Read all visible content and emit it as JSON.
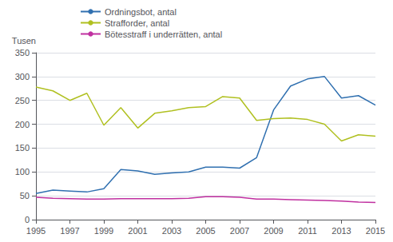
{
  "chart_data": {
    "type": "line",
    "ylabel": "Tusen",
    "x": [
      1995,
      1996,
      1997,
      1998,
      1999,
      2000,
      2001,
      2002,
      2003,
      2004,
      2005,
      2006,
      2007,
      2008,
      2009,
      2010,
      2011,
      2012,
      2013,
      2014,
      2015
    ],
    "series": [
      {
        "name": "Ordningsbot, antal",
        "color": "#3070b0",
        "values": [
          55,
          62,
          60,
          58,
          65,
          105,
          102,
          95,
          98,
          100,
          110,
          110,
          108,
          130,
          230,
          280,
          295,
          300,
          255,
          260,
          240
        ]
      },
      {
        "name": "Strafforder, antal",
        "color": "#b0c020",
        "values": [
          278,
          270,
          250,
          265,
          198,
          235,
          192,
          223,
          228,
          235,
          237,
          258,
          255,
          208,
          212,
          213,
          210,
          200,
          165,
          178,
          175
        ]
      },
      {
        "name": "Bötesstraff i underrätten, antal",
        "color": "#c030a0",
        "values": [
          47,
          45,
          44,
          43,
          43,
          44,
          44,
          44,
          44,
          45,
          48,
          48,
          47,
          43,
          43,
          42,
          41,
          40,
          39,
          37,
          36
        ]
      }
    ],
    "xlim": [
      1995,
      2015
    ],
    "xticks": [
      1995,
      1997,
      1999,
      2001,
      2003,
      2005,
      2007,
      2009,
      2011,
      2013,
      2015
    ],
    "ylim": [
      0,
      350
    ],
    "yticks": [
      0,
      50,
      100,
      150,
      200,
      250,
      300,
      350
    ],
    "grid": true,
    "legend": "upper left"
  }
}
